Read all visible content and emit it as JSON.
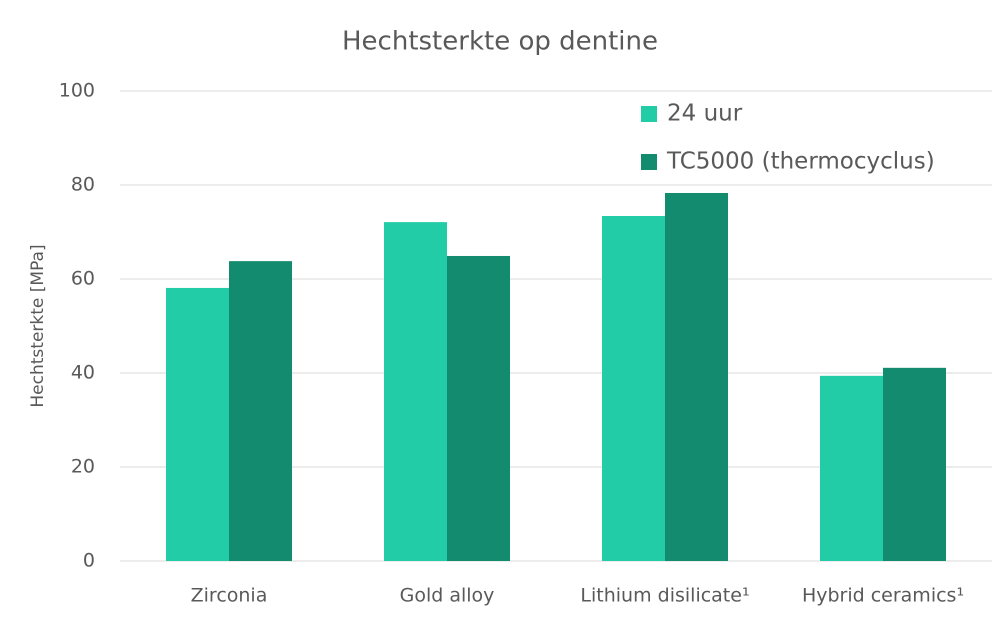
{
  "chart_data": {
    "type": "bar",
    "title": "Hechtsterkte op dentine",
    "y_label": "Hechtsterkte [MPa]",
    "categories": [
      "Zirconia",
      "Gold alloy",
      "Lithium disilicate¹",
      "Hybrid ceramics¹"
    ],
    "series": [
      {
        "name": "24 uur",
        "color": "#21cca6",
        "values": [
          58.1,
          72.1,
          73.4,
          39.4
        ]
      },
      {
        "name": "TC5000 (thermocyclus)",
        "color": "#138b6e",
        "values": [
          63.8,
          64.9,
          78.3,
          41.1
        ]
      }
    ],
    "ylim": [
      0,
      100
    ],
    "yticks": [
      0,
      20,
      40,
      60,
      80,
      100
    ],
    "grid": true,
    "legend": "top-right"
  }
}
